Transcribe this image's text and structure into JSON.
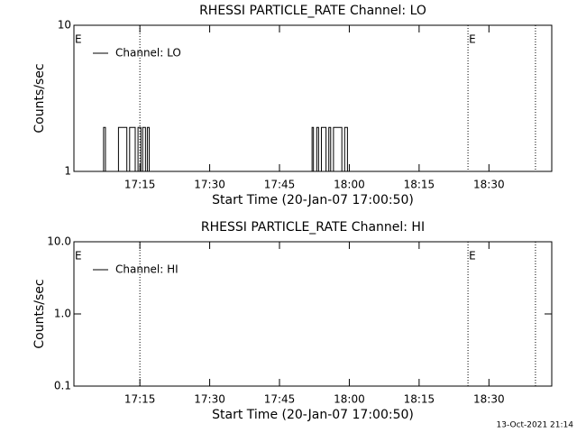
{
  "chart_data": [
    {
      "type": "line",
      "title": "RHESSI PARTICLE_RATE Channel: LO",
      "x_label": "Start Time (20-Jan-07 17:00:50)",
      "y_label": "Counts/sec",
      "xlim": [
        0.83,
        103.5
      ],
      "xticks": [
        {
          "value": 15,
          "label": "17:15"
        },
        {
          "value": 30,
          "label": "17:30"
        },
        {
          "value": 45,
          "label": "17:45"
        },
        {
          "value": 60,
          "label": "18:00"
        },
        {
          "value": 75,
          "label": "18:15"
        },
        {
          "value": 90,
          "label": "18:30"
        }
      ],
      "ylim": [
        1,
        10
      ],
      "yticks": [
        1,
        10
      ],
      "log_y": true,
      "legend": "upper left",
      "vlines": [
        15,
        85.5,
        100
      ],
      "annotations": [
        {
          "text": "E",
          "x": 0.83
        },
        {
          "text": "E",
          "x": 85.5
        }
      ],
      "series": [
        {
          "name": "Channel: LO",
          "color": "#000000",
          "x": [
            0.83,
            7.2,
            7.2,
            7.6,
            7.6,
            10.4,
            10.4,
            12.2,
            12.2,
            12.8,
            12.8,
            14.0,
            14.0,
            14.6,
            14.6,
            15.2,
            15.2,
            15.6,
            15.6,
            16.2,
            16.2,
            16.6,
            16.6,
            17.0,
            17.0,
            52.0,
            52.0,
            52.3,
            52.3,
            53.0,
            53.0,
            53.4,
            53.4,
            54.0,
            54.0,
            55.0,
            55.0,
            55.6,
            55.6,
            56.0,
            56.0,
            56.6,
            56.6,
            58.4,
            58.4,
            59.0,
            59.0,
            59.6,
            59.6,
            103.5
          ],
          "values": [
            1,
            1,
            2,
            2,
            1,
            1,
            2,
            2,
            1,
            1,
            2,
            2,
            1,
            1,
            2,
            2,
            1,
            1,
            2,
            2,
            1,
            1,
            2,
            2,
            1,
            1,
            2,
            2,
            1,
            1,
            2,
            2,
            1,
            1,
            2,
            2,
            1,
            1,
            2,
            2,
            1,
            1,
            2,
            2,
            1,
            1,
            2,
            2,
            1,
            1
          ]
        }
      ]
    },
    {
      "type": "line",
      "title": "RHESSI PARTICLE_RATE Channel: HI",
      "x_label": "Start Time (20-Jan-07 17:00:50)",
      "y_label": "Counts/sec",
      "xlim": [
        0.83,
        103.5
      ],
      "xticks": [
        {
          "value": 15,
          "label": "17:15"
        },
        {
          "value": 30,
          "label": "17:30"
        },
        {
          "value": 45,
          "label": "17:45"
        },
        {
          "value": 60,
          "label": "18:00"
        },
        {
          "value": 75,
          "label": "18:15"
        },
        {
          "value": 90,
          "label": "18:30"
        }
      ],
      "ylim": [
        0.1,
        10
      ],
      "yticks": [
        0.1,
        {
          "value": 1,
          "label": "1.0"
        },
        {
          "value": 10,
          "label": "10.0"
        }
      ],
      "log_y": true,
      "legend": "upper left",
      "vlines": [
        15,
        85.5,
        100
      ],
      "annotations": [
        {
          "text": "E",
          "x": 0.83
        },
        {
          "text": "E",
          "x": 85.5
        }
      ],
      "series": [
        {
          "name": "Channel: HI",
          "color": "#000000",
          "x": [],
          "values": []
        }
      ]
    }
  ],
  "footer": "13-Oct-2021 21:14"
}
